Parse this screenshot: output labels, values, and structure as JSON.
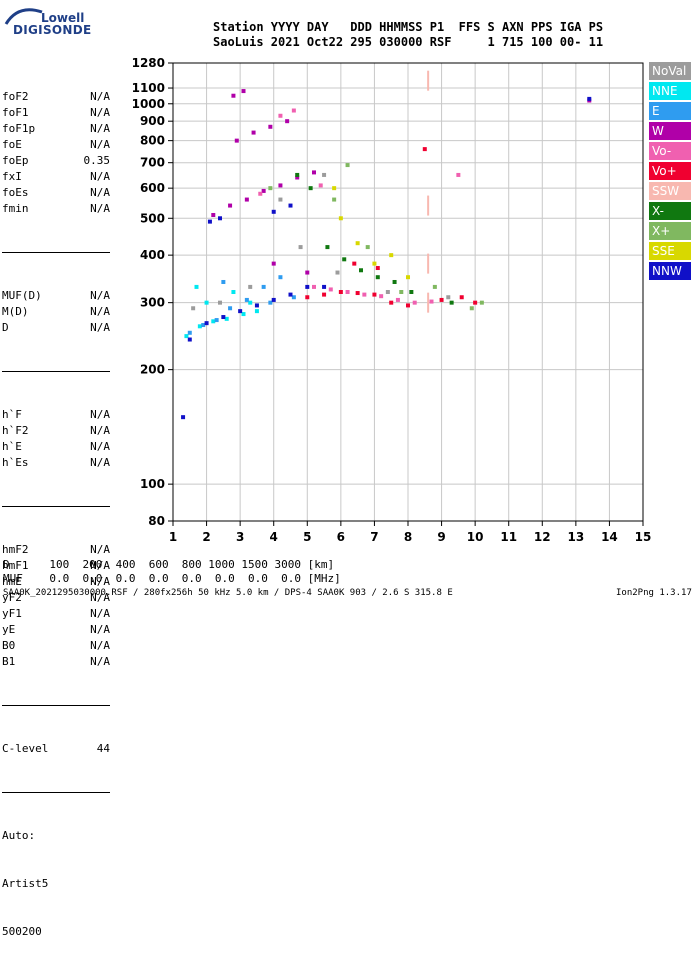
{
  "logo": {
    "top": "Lowell",
    "bottom": "DIGISONDE"
  },
  "header": {
    "line1": "Station YYYY DAY   DDD HHMMSS P1  FFS S AXN PPS IGA PS",
    "line2": "SaoLuis 2021 Oct22 295 030000 RSF     1 715 100 00- 11"
  },
  "params_group1": [
    {
      "name": "foF2",
      "value": "N/A"
    },
    {
      "name": "foF1",
      "value": "N/A"
    },
    {
      "name": "foF1p",
      "value": "N/A"
    },
    {
      "name": "foE",
      "value": "N/A"
    },
    {
      "name": "foEp",
      "value": "0.35"
    },
    {
      "name": "fxI",
      "value": "N/A"
    },
    {
      "name": "foEs",
      "value": "N/A"
    },
    {
      "name": "fmin",
      "value": "N/A"
    }
  ],
  "params_group2": [
    {
      "name": "MUF(D)",
      "value": "N/A"
    },
    {
      "name": "M(D)",
      "value": "N/A"
    },
    {
      "name": "D",
      "value": "N/A"
    }
  ],
  "params_group3": [
    {
      "name": "h`F",
      "value": "N/A"
    },
    {
      "name": "h`F2",
      "value": "N/A"
    },
    {
      "name": "h`E",
      "value": "N/A"
    },
    {
      "name": "h`Es",
      "value": "N/A"
    }
  ],
  "params_group4": [
    {
      "name": "hmF2",
      "value": "N/A"
    },
    {
      "name": "hmF1",
      "value": "N/A"
    },
    {
      "name": "hmE",
      "value": "N/A"
    },
    {
      "name": "yF2",
      "value": "N/A"
    },
    {
      "name": "yF1",
      "value": "N/A"
    },
    {
      "name": "yE",
      "value": "N/A"
    },
    {
      "name": "B0",
      "value": "N/A"
    },
    {
      "name": "B1",
      "value": "N/A"
    }
  ],
  "c_level": {
    "name": "C-level",
    "value": "44"
  },
  "auto": [
    "Auto:",
    "Artist5",
    "500200"
  ],
  "legend": [
    {
      "label": "NoVal",
      "bg": "#9c9c9c",
      "fg": "#ffffff"
    },
    {
      "label": "NNE",
      "bg": "#00e8f0",
      "fg": "#ffffff"
    },
    {
      "label": "E",
      "bg": "#2f9cf0",
      "fg": "#ffffff"
    },
    {
      "label": "W",
      "bg": "#b000a8",
      "fg": "#ffffff"
    },
    {
      "label": "Vo-",
      "bg": "#f060b0",
      "fg": "#ffffff"
    },
    {
      "label": "Vo+",
      "bg": "#f00030",
      "fg": "#ffffff"
    },
    {
      "label": "SSW",
      "bg": "#f8b8b0",
      "fg": "#ffffff"
    },
    {
      "label": "X-",
      "bg": "#107810",
      "fg": "#ffffff"
    },
    {
      "label": "X+",
      "bg": "#80b860",
      "fg": "#ffffff"
    },
    {
      "label": "SSE",
      "bg": "#d8d800",
      "fg": "#ffffff"
    },
    {
      "label": "NNW",
      "bg": "#1010c8",
      "fg": "#ffffff"
    }
  ],
  "chart_data": {
    "type": "scatter",
    "title": "",
    "xlabel": "",
    "ylabel": "",
    "xlim": [
      1,
      15
    ],
    "ylim": [
      80,
      1280
    ],
    "y_scale": "log",
    "grid": true,
    "x_ticks": [
      1,
      2,
      3,
      4,
      5,
      6,
      7,
      8,
      9,
      10,
      11,
      12,
      13,
      14,
      15
    ],
    "y_ticks": [
      80,
      100,
      200,
      300,
      400,
      500,
      600,
      700,
      800,
      900,
      1000,
      1100,
      1280
    ],
    "series": [
      {
        "name": "NoVal",
        "color": "#9c9c9c",
        "points": [
          [
            1.6,
            290
          ],
          [
            2.4,
            300
          ],
          [
            3.3,
            330
          ],
          [
            4.8,
            420
          ],
          [
            5.9,
            360
          ],
          [
            7.4,
            320
          ],
          [
            9.2,
            310
          ],
          [
            5.5,
            650
          ],
          [
            4.2,
            560
          ]
        ]
      },
      {
        "name": "NNE",
        "color": "#00e8f0",
        "points": [
          [
            1.4,
            245
          ],
          [
            1.8,
            260
          ],
          [
            2.2,
            268
          ],
          [
            2.6,
            272
          ],
          [
            3.1,
            280
          ],
          [
            3.5,
            285
          ],
          [
            2.0,
            300
          ],
          [
            2.8,
            320
          ],
          [
            1.7,
            330
          ],
          [
            3.3,
            300
          ]
        ]
      },
      {
        "name": "E",
        "color": "#2f9cf0",
        "points": [
          [
            1.5,
            250
          ],
          [
            1.9,
            262
          ],
          [
            2.3,
            270
          ],
          [
            2.7,
            290
          ],
          [
            3.2,
            305
          ],
          [
            3.7,
            330
          ],
          [
            4.2,
            350
          ],
          [
            2.5,
            340
          ],
          [
            3.9,
            300
          ],
          [
            4.6,
            310
          ]
        ]
      },
      {
        "name": "W",
        "color": "#b000a8",
        "points": [
          [
            2.2,
            510
          ],
          [
            2.7,
            540
          ],
          [
            3.2,
            560
          ],
          [
            3.7,
            590
          ],
          [
            4.2,
            610
          ],
          [
            4.7,
            640
          ],
          [
            5.2,
            660
          ],
          [
            2.9,
            800
          ],
          [
            3.4,
            840
          ],
          [
            3.9,
            870
          ],
          [
            4.4,
            900
          ],
          [
            2.8,
            1050
          ],
          [
            3.1,
            1080
          ],
          [
            13.4,
            1020
          ],
          [
            4.0,
            380
          ],
          [
            5.0,
            360
          ]
        ]
      },
      {
        "name": "Vo-",
        "color": "#f060b0",
        "points": [
          [
            5.2,
            330
          ],
          [
            5.7,
            325
          ],
          [
            6.2,
            320
          ],
          [
            6.7,
            315
          ],
          [
            7.2,
            312
          ],
          [
            7.7,
            305
          ],
          [
            8.2,
            300
          ],
          [
            8.7,
            302
          ],
          [
            4.2,
            930
          ],
          [
            4.6,
            960
          ],
          [
            3.6,
            580
          ],
          [
            5.4,
            610
          ],
          [
            9.5,
            650
          ]
        ]
      },
      {
        "name": "Vo+",
        "color": "#f00030",
        "points": [
          [
            5.0,
            310
          ],
          [
            5.5,
            315
          ],
          [
            6.0,
            320
          ],
          [
            6.5,
            318
          ],
          [
            7.0,
            315
          ],
          [
            7.5,
            300
          ],
          [
            8.0,
            295
          ],
          [
            9.0,
            305
          ],
          [
            9.6,
            310
          ],
          [
            10.0,
            300
          ],
          [
            6.4,
            380
          ],
          [
            7.1,
            370
          ],
          [
            8.5,
            760
          ]
        ]
      },
      {
        "name": "SSW",
        "color": "#f8b8b0",
        "points": [
          [
            8.6,
            1150
          ],
          [
            8.6,
            540
          ],
          [
            8.6,
            380
          ],
          [
            8.6,
            300
          ]
        ]
      },
      {
        "name": "X-",
        "color": "#107810",
        "points": [
          [
            4.7,
            650
          ],
          [
            5.1,
            600
          ],
          [
            5.6,
            420
          ],
          [
            6.1,
            390
          ],
          [
            6.6,
            365
          ],
          [
            7.1,
            350
          ],
          [
            7.6,
            340
          ],
          [
            8.1,
            320
          ],
          [
            9.3,
            300
          ]
        ]
      },
      {
        "name": "X+",
        "color": "#80b860",
        "points": [
          [
            3.9,
            600
          ],
          [
            5.8,
            560
          ],
          [
            6.2,
            690
          ],
          [
            6.8,
            420
          ],
          [
            7.8,
            320
          ],
          [
            8.8,
            330
          ],
          [
            9.9,
            290
          ],
          [
            10.2,
            300
          ]
        ]
      },
      {
        "name": "SSE",
        "color": "#d8d800",
        "points": [
          [
            5.8,
            600
          ],
          [
            6.0,
            500
          ],
          [
            6.5,
            430
          ],
          [
            7.0,
            380
          ],
          [
            7.5,
            400
          ],
          [
            8.0,
            350
          ]
        ]
      },
      {
        "name": "NNW",
        "color": "#1010c8",
        "points": [
          [
            1.3,
            150
          ],
          [
            1.5,
            240
          ],
          [
            2.0,
            265
          ],
          [
            2.5,
            275
          ],
          [
            3.0,
            285
          ],
          [
            3.5,
            295
          ],
          [
            4.0,
            305
          ],
          [
            4.5,
            315
          ],
          [
            5.0,
            330
          ],
          [
            5.5,
            330
          ],
          [
            4.0,
            520
          ],
          [
            4.5,
            540
          ],
          [
            2.1,
            490
          ],
          [
            2.4,
            500
          ],
          [
            13.4,
            1030
          ]
        ]
      }
    ]
  },
  "footer": {
    "d_row": "D      100  200  400  600  800 1000 1500 3000 [km]",
    "muf_row": "MUF    0.0  0.0  0.0  0.0  0.0  0.0  0.0  0.0 [MHz]",
    "file_info": "SAA0K_2021295030000.RSF / 280fx256h 50 kHz 5.0 km / DPS-4 SAA0K 903 / 2.6 S 315.8 E",
    "version": "Ion2Png 1.3.17"
  }
}
